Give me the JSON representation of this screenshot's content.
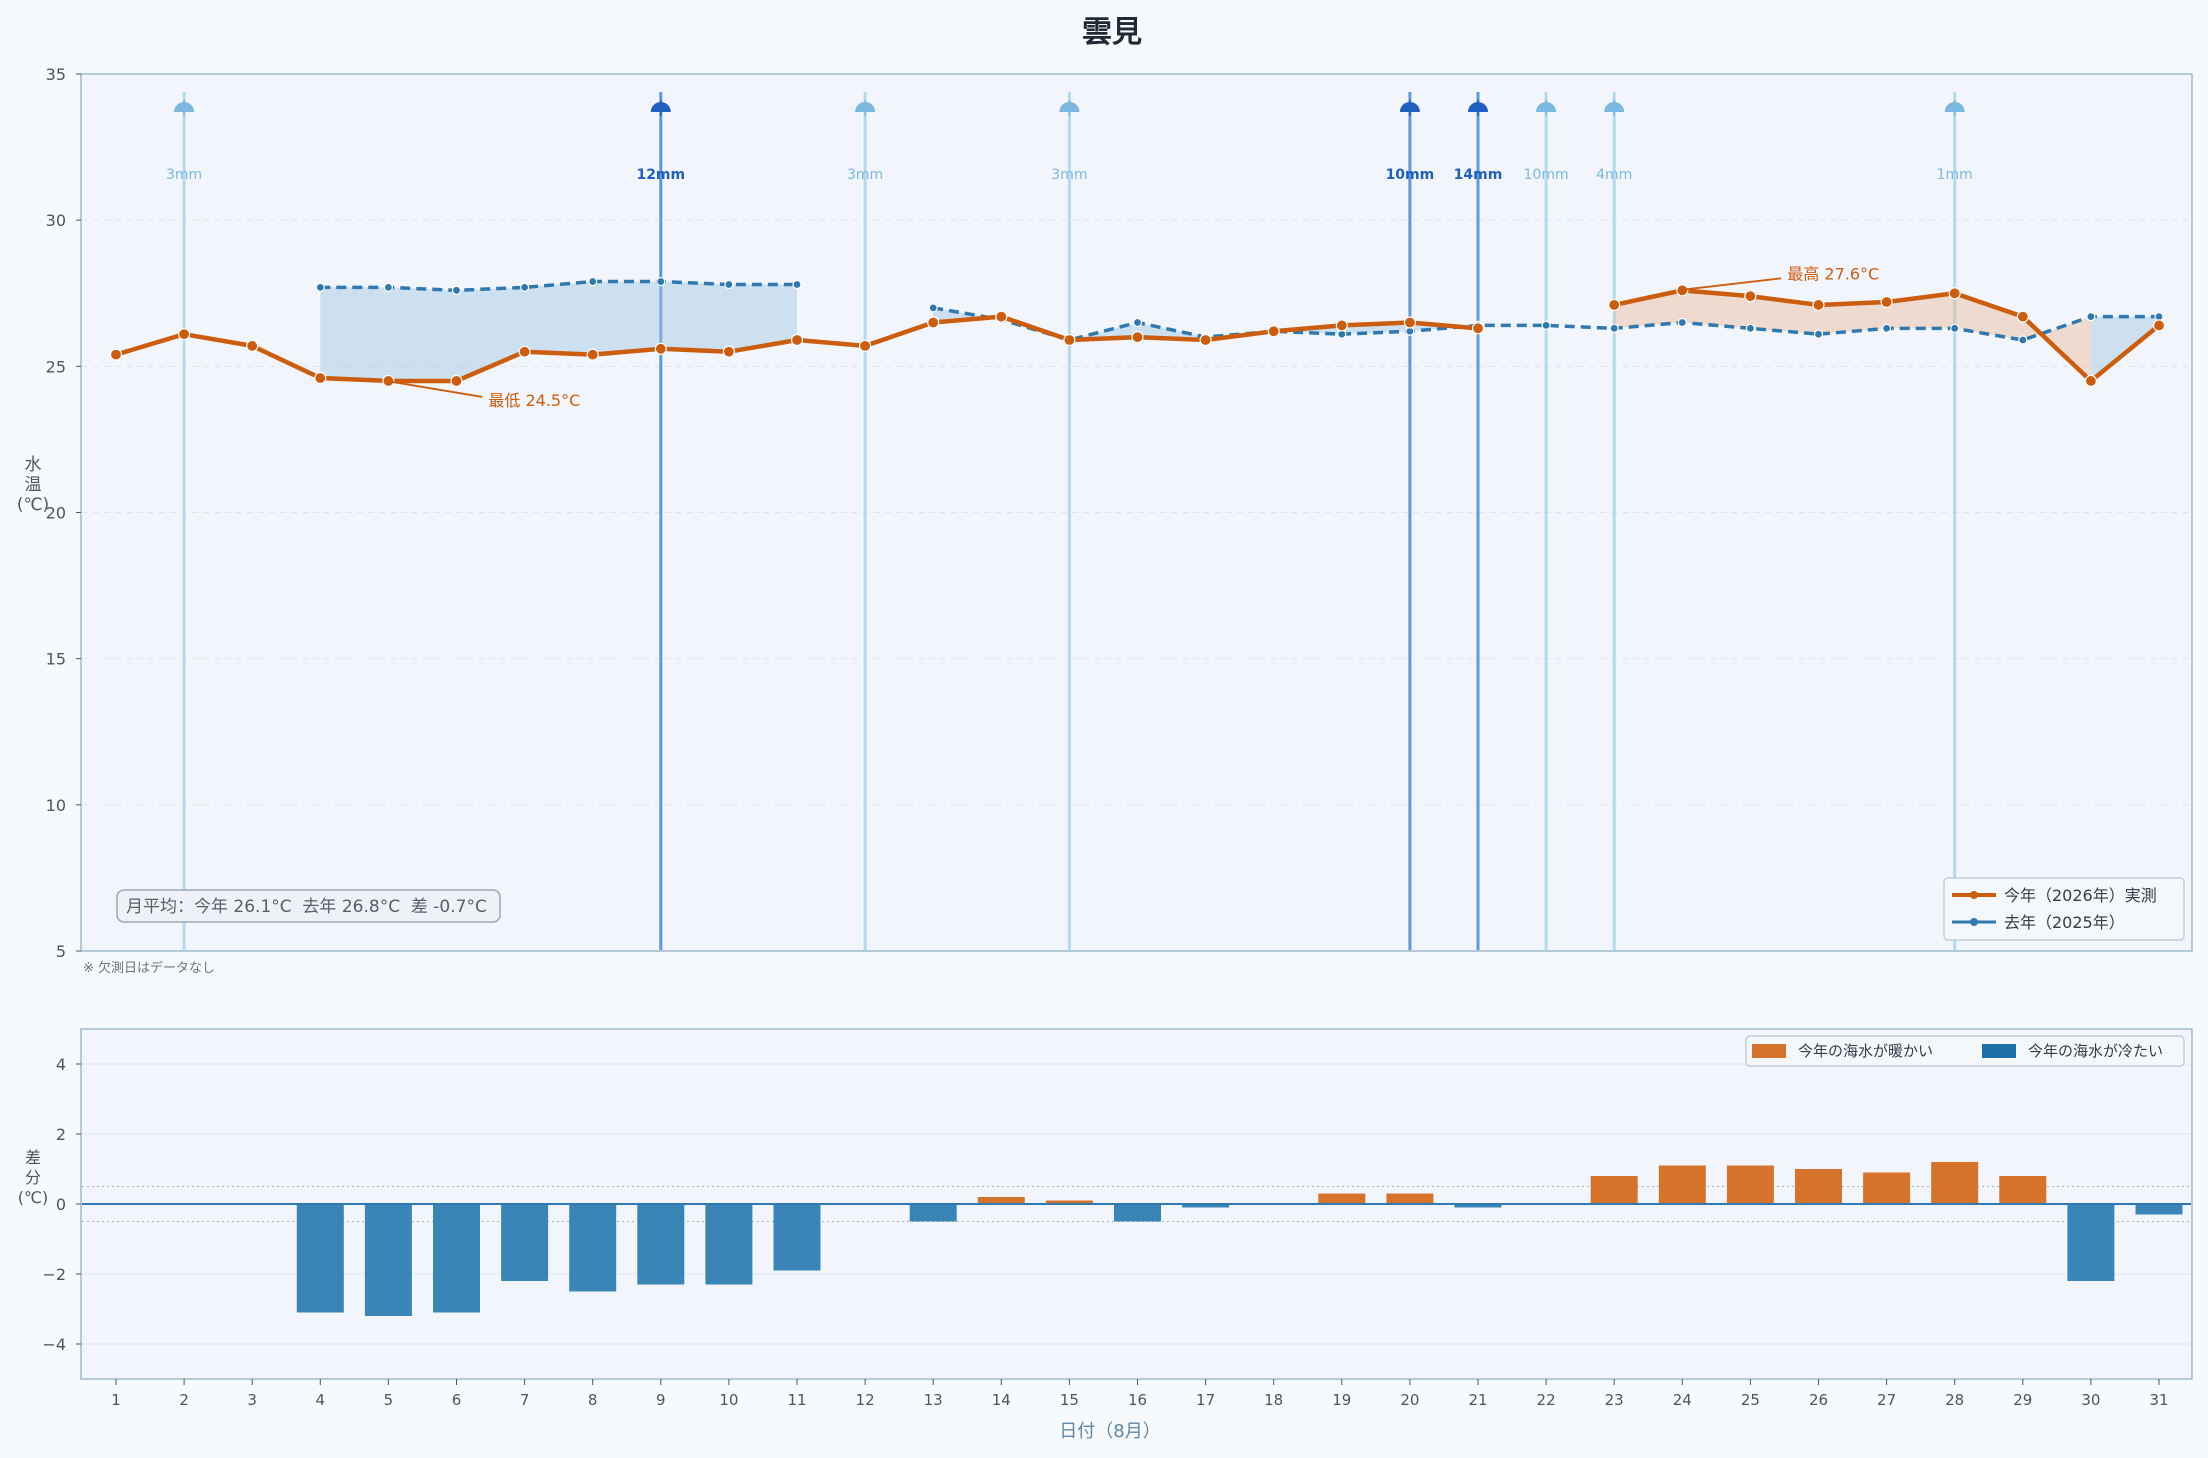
{
  "title": "雲見",
  "colors": {
    "this_year": "#cc5c0e",
    "last_year": "#2f79b0",
    "warm_bar": "#d6732a",
    "cold_bar": "#3a85b8",
    "rain_light": "#a9d4ec",
    "rain_heavy": "#4f8fd6",
    "rain_label_light": "#7ab8e0",
    "rain_label_heavy": "#1f5fbf",
    "panel_bg": "#f2f6fc",
    "frame": "#9fb8c9"
  },
  "chart_data": [
    {
      "type": "line",
      "title": "雲見",
      "xlabel": "",
      "ylabel": "水温(℃)",
      "ylim": [
        5,
        35
      ],
      "yticks": [
        5,
        10,
        15,
        20,
        25,
        30,
        35
      ],
      "categories": [
        "1",
        "2",
        "3",
        "4",
        "5",
        "6",
        "7",
        "8",
        "9",
        "10",
        "11",
        "12",
        "13",
        "14",
        "15",
        "16",
        "17",
        "18",
        "19",
        "20",
        "21",
        "22",
        "23",
        "24",
        "25",
        "26",
        "27",
        "28",
        "29",
        "30",
        "31"
      ],
      "series": [
        {
          "name": "今年（2026年）実測",
          "values": [
            25.4,
            26.1,
            25.7,
            24.6,
            24.5,
            24.5,
            25.5,
            25.4,
            25.6,
            25.5,
            25.9,
            25.7,
            26.5,
            26.7,
            25.9,
            26.0,
            25.9,
            26.2,
            26.4,
            26.5,
            26.3,
            null,
            27.1,
            27.6,
            27.4,
            27.1,
            27.2,
            27.5,
            26.7,
            24.5,
            26.4
          ]
        },
        {
          "name": "去年（2025年）",
          "values": [
            null,
            null,
            null,
            27.7,
            27.7,
            27.6,
            27.7,
            27.9,
            27.9,
            27.8,
            27.8,
            null,
            27.0,
            26.6,
            25.9,
            26.5,
            26.0,
            26.2,
            26.1,
            26.2,
            26.4,
            26.4,
            26.3,
            26.5,
            26.3,
            26.1,
            26.3,
            26.3,
            25.9,
            26.7,
            26.7
          ]
        }
      ],
      "rain_events": [
        {
          "day": 2,
          "label": "3mm",
          "heavy": false
        },
        {
          "day": 9,
          "label": "12mm",
          "heavy": true
        },
        {
          "day": 12,
          "label": "3mm",
          "heavy": false
        },
        {
          "day": 15,
          "label": "3mm",
          "heavy": false
        },
        {
          "day": 20,
          "label": "10mm",
          "heavy": true
        },
        {
          "day": 21,
          "label": "14mm",
          "heavy": true
        },
        {
          "day": 22,
          "label": "10mm",
          "heavy": false
        },
        {
          "day": 23,
          "label": "4mm",
          "heavy": false
        },
        {
          "day": 28,
          "label": "1mm",
          "heavy": false
        }
      ],
      "annotations": [
        {
          "day": 5,
          "value": 24.5,
          "text": "最低 24.5°C"
        },
        {
          "day": 24,
          "value": 27.6,
          "text": "最高 27.6°C"
        }
      ],
      "summary": "月平均：今年 26.1°C  去年 26.8°C  差 -0.7°C",
      "footnote": "※ 欠測日はデータなし",
      "legend_position": "bottom-right",
      "grid": true
    },
    {
      "type": "bar",
      "xlabel": "日付（8月）",
      "ylabel": "差分(℃)",
      "ylim": [
        -5,
        5
      ],
      "yticks": [
        -4,
        -2,
        0,
        2,
        4
      ],
      "categories": [
        "1",
        "2",
        "3",
        "4",
        "5",
        "6",
        "7",
        "8",
        "9",
        "10",
        "11",
        "12",
        "13",
        "14",
        "15",
        "16",
        "17",
        "18",
        "19",
        "20",
        "21",
        "22",
        "23",
        "24",
        "25",
        "26",
        "27",
        "28",
        "29",
        "30",
        "31"
      ],
      "values": [
        null,
        null,
        null,
        -3.1,
        -3.2,
        -3.1,
        -2.2,
        -2.5,
        -2.3,
        -2.3,
        -1.9,
        null,
        -0.5,
        0.2,
        0.1,
        -0.5,
        -0.1,
        0.0,
        0.3,
        0.3,
        -0.1,
        null,
        0.8,
        1.1,
        1.1,
        1.0,
        0.9,
        1.2,
        0.8,
        -2.2,
        -0.3
      ],
      "legend": [
        "今年の海水が暖かい",
        "今年の海水が冷たい"
      ],
      "legend_position": "top-right",
      "grid": true
    }
  ]
}
